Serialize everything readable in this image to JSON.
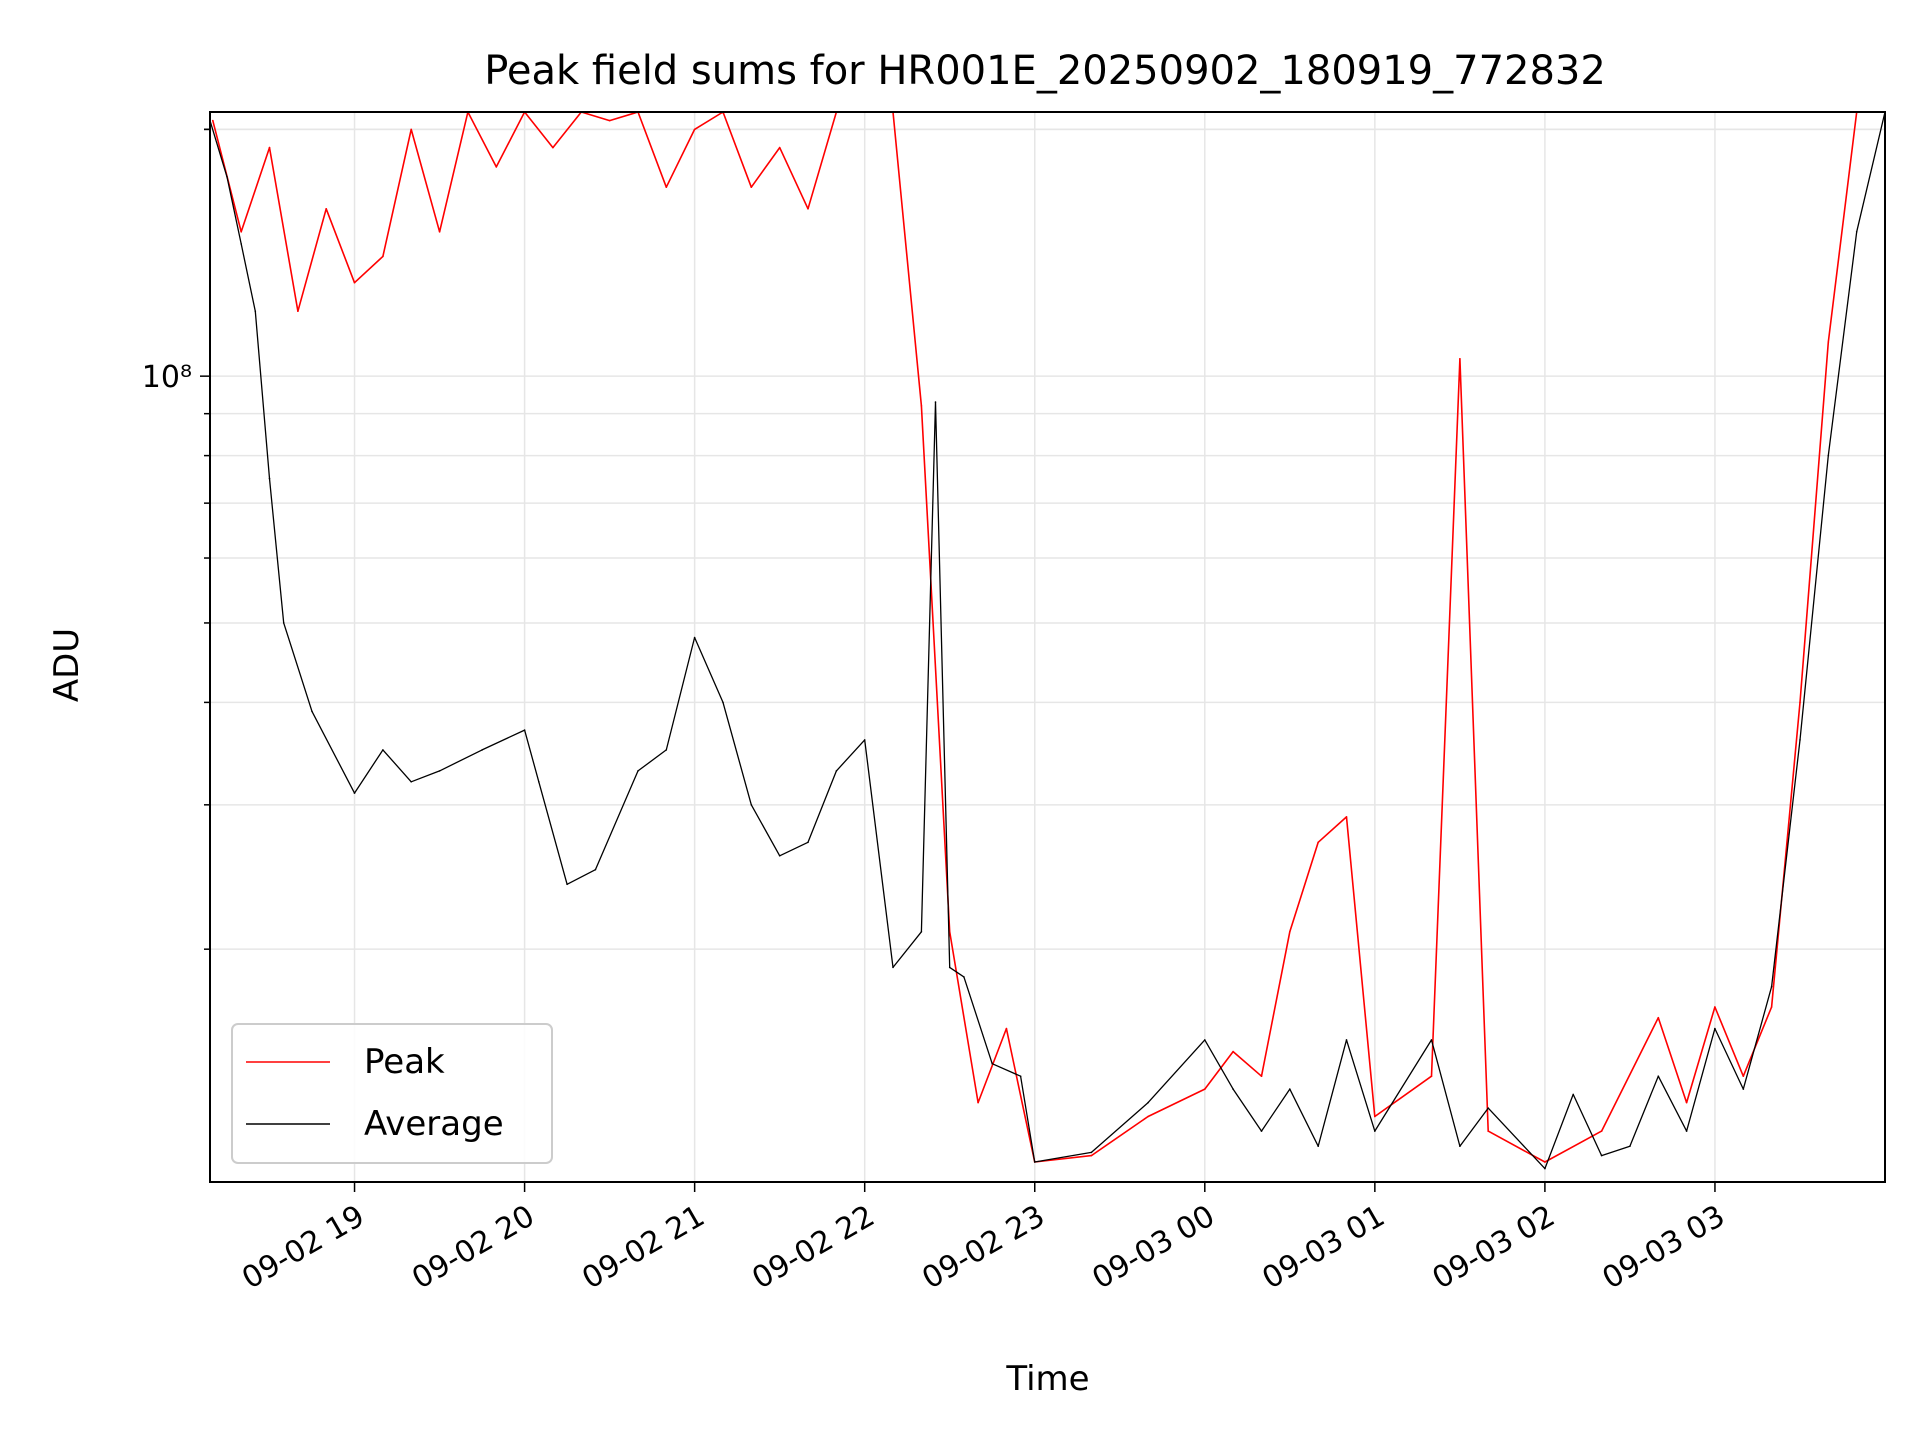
{
  "chart_data": {
    "type": "line",
    "title": "Peak field sums for HR001E_20250902_180919_772832",
    "xlabel": "Time",
    "ylabel": "ADU",
    "y_scale": "log",
    "ylim": [
      10400000,
      210000000
    ],
    "x_ticks": [
      "09-02 19",
      "09-02 20",
      "09-02 21",
      "09-02 22",
      "09-02 23",
      "09-03 00",
      "09-03 01",
      "09-03 02",
      "09-03 03"
    ],
    "y_tick_labels": [
      {
        "value": 100000000,
        "label": "10⁸"
      }
    ],
    "grid": true,
    "legend_position": "lower-left",
    "series": [
      {
        "name": "Peak",
        "color": "#ff0000",
        "points": [
          [
            "2025-09-02 18:10",
            205000000
          ],
          [
            "2025-09-02 18:20",
            150000000
          ],
          [
            "2025-09-02 18:30",
            190000000
          ],
          [
            "2025-09-02 18:40",
            120000000
          ],
          [
            "2025-09-02 18:50",
            160000000
          ],
          [
            "2025-09-02 19:00",
            130000000
          ],
          [
            "2025-09-02 19:10",
            140000000
          ],
          [
            "2025-09-02 19:20",
            200000000
          ],
          [
            "2025-09-02 19:30",
            150000000
          ],
          [
            "2025-09-02 19:40",
            210000000
          ],
          [
            "2025-09-02 19:50",
            180000000
          ],
          [
            "2025-09-02 20:00",
            210000000
          ],
          [
            "2025-09-02 20:10",
            190000000
          ],
          [
            "2025-09-02 20:20",
            210000000
          ],
          [
            "2025-09-02 20:30",
            205000000
          ],
          [
            "2025-09-02 20:40",
            210000000
          ],
          [
            "2025-09-02 20:50",
            170000000
          ],
          [
            "2025-09-02 21:00",
            200000000
          ],
          [
            "2025-09-02 21:10",
            210000000
          ],
          [
            "2025-09-02 21:20",
            170000000
          ],
          [
            "2025-09-02 21:30",
            190000000
          ],
          [
            "2025-09-02 21:40",
            160000000
          ],
          [
            "2025-09-02 21:50",
            210000000
          ],
          [
            "2025-09-02 22:00",
            210000000
          ],
          [
            "2025-09-02 22:10",
            210000000
          ],
          [
            "2025-09-02 22:20",
            92000000
          ],
          [
            "2025-09-02 22:30",
            21000000
          ],
          [
            "2025-09-02 22:40",
            13000000
          ],
          [
            "2025-09-02 22:50",
            16000000
          ],
          [
            "2025-09-02 23:00",
            11000000
          ],
          [
            "2025-09-02 23:20",
            11200000
          ],
          [
            "2025-09-02 23:40",
            12500000
          ],
          [
            "2025-09-03 00:00",
            13500000
          ],
          [
            "2025-09-03 00:10",
            15000000
          ],
          [
            "2025-09-03 00:20",
            14000000
          ],
          [
            "2025-09-03 00:30",
            21000000
          ],
          [
            "2025-09-03 00:40",
            27000000
          ],
          [
            "2025-09-03 00:50",
            29000000
          ],
          [
            "2025-09-03 01:00",
            12500000
          ],
          [
            "2025-09-03 01:20",
            14000000
          ],
          [
            "2025-09-03 01:30",
            105000000
          ],
          [
            "2025-09-03 01:40",
            12000000
          ],
          [
            "2025-09-03 02:00",
            11000000
          ],
          [
            "2025-09-03 02:20",
            12000000
          ],
          [
            "2025-09-03 02:40",
            16500000
          ],
          [
            "2025-09-03 02:50",
            13000000
          ],
          [
            "2025-09-03 03:00",
            17000000
          ],
          [
            "2025-09-03 03:10",
            14000000
          ],
          [
            "2025-09-03 03:20",
            17000000
          ],
          [
            "2025-09-03 03:30",
            40000000
          ],
          [
            "2025-09-03 03:40",
            110000000
          ],
          [
            "2025-09-03 03:50",
            210000000
          ],
          [
            "2025-09-03 04:00",
            210000000
          ]
        ]
      },
      {
        "name": "Average",
        "color": "#000000",
        "points": [
          [
            "2025-09-02 18:09",
            205000000
          ],
          [
            "2025-09-02 18:15",
            175000000
          ],
          [
            "2025-09-02 18:20",
            145000000
          ],
          [
            "2025-09-02 18:25",
            120000000
          ],
          [
            "2025-09-02 18:30",
            75000000
          ],
          [
            "2025-09-02 18:35",
            50000000
          ],
          [
            "2025-09-02 18:45",
            39000000
          ],
          [
            "2025-09-02 19:00",
            31000000
          ],
          [
            "2025-09-02 19:10",
            35000000
          ],
          [
            "2025-09-02 19:20",
            32000000
          ],
          [
            "2025-09-02 19:30",
            33000000
          ],
          [
            "2025-09-02 19:45",
            35000000
          ],
          [
            "2025-09-02 20:00",
            37000000
          ],
          [
            "2025-09-02 20:05",
            32000000
          ],
          [
            "2025-09-02 20:15",
            24000000
          ],
          [
            "2025-09-02 20:25",
            25000000
          ],
          [
            "2025-09-02 20:40",
            33000000
          ],
          [
            "2025-09-02 20:50",
            35000000
          ],
          [
            "2025-09-02 21:00",
            48000000
          ],
          [
            "2025-09-02 21:10",
            40000000
          ],
          [
            "2025-09-02 21:20",
            30000000
          ],
          [
            "2025-09-02 21:30",
            26000000
          ],
          [
            "2025-09-02 21:40",
            27000000
          ],
          [
            "2025-09-02 21:50",
            33000000
          ],
          [
            "2025-09-02 22:00",
            36000000
          ],
          [
            "2025-09-02 22:10",
            19000000
          ],
          [
            "2025-09-02 22:20",
            21000000
          ],
          [
            "2025-09-02 22:25",
            93000000
          ],
          [
            "2025-09-02 22:30",
            19000000
          ],
          [
            "2025-09-02 22:35",
            18500000
          ],
          [
            "2025-09-02 22:45",
            14500000
          ],
          [
            "2025-09-02 22:55",
            14000000
          ],
          [
            "2025-09-02 23:00",
            11000000
          ],
          [
            "2025-09-02 23:20",
            11300000
          ],
          [
            "2025-09-02 23:40",
            13000000
          ],
          [
            "2025-09-03 00:00",
            15500000
          ],
          [
            "2025-09-03 00:10",
            13500000
          ],
          [
            "2025-09-03 00:20",
            12000000
          ],
          [
            "2025-09-03 00:30",
            13500000
          ],
          [
            "2025-09-03 00:40",
            11500000
          ],
          [
            "2025-09-03 00:50",
            15500000
          ],
          [
            "2025-09-03 01:00",
            12000000
          ],
          [
            "2025-09-03 01:20",
            15500000
          ],
          [
            "2025-09-03 01:30",
            11500000
          ],
          [
            "2025-09-03 01:40",
            12800000
          ],
          [
            "2025-09-03 02:00",
            10800000
          ],
          [
            "2025-09-03 02:10",
            13300000
          ],
          [
            "2025-09-03 02:20",
            11200000
          ],
          [
            "2025-09-03 02:30",
            11500000
          ],
          [
            "2025-09-03 02:40",
            14000000
          ],
          [
            "2025-09-03 02:50",
            12000000
          ],
          [
            "2025-09-03 03:00",
            16000000
          ],
          [
            "2025-09-03 03:10",
            13500000
          ],
          [
            "2025-09-03 03:20",
            18000000
          ],
          [
            "2025-09-03 03:30",
            36000000
          ],
          [
            "2025-09-03 03:40",
            80000000
          ],
          [
            "2025-09-03 03:50",
            150000000
          ],
          [
            "2025-09-03 04:00",
            210000000
          ]
        ]
      }
    ]
  }
}
